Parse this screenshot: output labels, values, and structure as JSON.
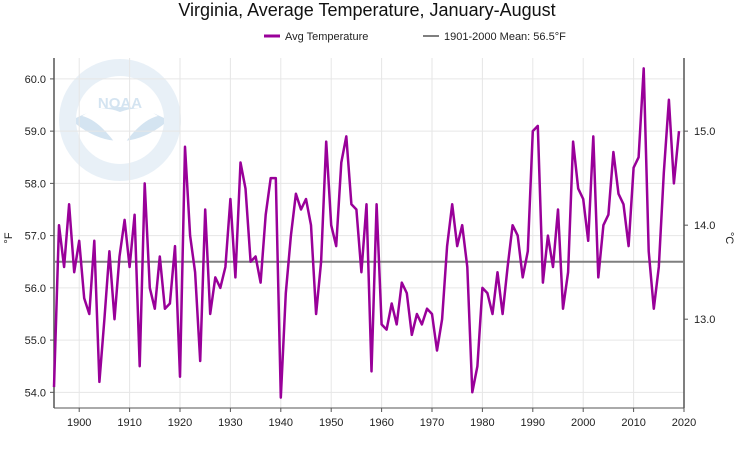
{
  "chart_data": {
    "type": "line",
    "title": "Virginia, Average Temperature, January-August",
    "ylabel_left": "°F",
    "ylabel_right": "°C",
    "xlim": [
      1895,
      2020
    ],
    "ylim": [
      53.7,
      60.4
    ],
    "x_ticks": [
      1900,
      1910,
      1920,
      1930,
      1940,
      1950,
      1960,
      1970,
      1980,
      1990,
      2000,
      2010,
      2020
    ],
    "y_ticks_left": [
      54.0,
      55.0,
      56.0,
      57.0,
      58.0,
      59.0,
      60.0
    ],
    "y_ticks_right": [
      13.0,
      14.0,
      15.0
    ],
    "grid": true,
    "legend_position": "top-center",
    "series": [
      {
        "name": "Avg Temperature",
        "color": "#990099",
        "x": [
          1895,
          1896,
          1897,
          1898,
          1899,
          1900,
          1901,
          1902,
          1903,
          1904,
          1905,
          1906,
          1907,
          1908,
          1909,
          1910,
          1911,
          1912,
          1913,
          1914,
          1915,
          1916,
          1917,
          1918,
          1919,
          1920,
          1921,
          1922,
          1923,
          1924,
          1925,
          1926,
          1927,
          1928,
          1929,
          1930,
          1931,
          1932,
          1933,
          1934,
          1935,
          1936,
          1937,
          1938,
          1939,
          1940,
          1941,
          1942,
          1943,
          1944,
          1945,
          1946,
          1947,
          1948,
          1949,
          1950,
          1951,
          1952,
          1953,
          1954,
          1955,
          1956,
          1957,
          1958,
          1959,
          1960,
          1961,
          1962,
          1963,
          1964,
          1965,
          1966,
          1967,
          1968,
          1969,
          1970,
          1971,
          1972,
          1973,
          1974,
          1975,
          1976,
          1977,
          1978,
          1979,
          1980,
          1981,
          1982,
          1983,
          1984,
          1985,
          1986,
          1987,
          1988,
          1989,
          1990,
          1991,
          1992,
          1993,
          1994,
          1995,
          1996,
          1997,
          1998,
          1999,
          2000,
          2001,
          2002,
          2003,
          2004,
          2005,
          2006,
          2007,
          2008,
          2009,
          2010,
          2011,
          2012,
          2013,
          2014,
          2015,
          2016,
          2017,
          2018,
          2019
        ],
        "values": [
          54.1,
          57.2,
          56.4,
          57.6,
          56.3,
          56.9,
          55.8,
          55.5,
          56.9,
          54.2,
          55.4,
          56.7,
          55.4,
          56.6,
          57.3,
          56.4,
          57.4,
          54.5,
          58.0,
          56.0,
          55.6,
          56.6,
          55.6,
          55.7,
          56.8,
          54.3,
          58.7,
          57.0,
          56.3,
          54.6,
          57.5,
          55.5,
          56.2,
          56.0,
          56.4,
          57.7,
          56.2,
          58.4,
          57.9,
          56.5,
          56.6,
          56.1,
          57.4,
          58.1,
          58.1,
          53.9,
          55.9,
          57.0,
          57.8,
          57.5,
          57.7,
          57.2,
          55.5,
          56.5,
          58.8,
          57.2,
          56.8,
          58.4,
          58.9,
          57.6,
          57.5,
          56.3,
          57.6,
          54.4,
          57.6,
          55.3,
          55.2,
          55.7,
          55.3,
          56.1,
          55.9,
          55.1,
          55.5,
          55.3,
          55.6,
          55.5,
          54.8,
          55.4,
          56.8,
          57.6,
          56.8,
          57.2,
          56.4,
          54.0,
          54.5,
          56.0,
          55.9,
          55.5,
          56.3,
          55.5,
          56.4,
          57.2,
          57.0,
          56.2,
          56.7,
          59.0,
          59.1,
          56.1,
          57.0,
          56.4,
          57.5,
          55.6,
          56.3,
          58.8,
          57.9,
          57.7,
          56.9,
          58.9,
          56.2,
          57.2,
          57.4,
          58.6,
          57.8,
          57.6,
          56.8,
          58.3,
          58.5,
          60.2,
          56.7,
          55.6,
          56.4,
          58.2,
          59.6,
          58.0,
          59.0
        ]
      },
      {
        "name": "1901-2000 Mean: 56.5°F",
        "color": "#7f7f7f",
        "constant": 56.5
      }
    ]
  }
}
